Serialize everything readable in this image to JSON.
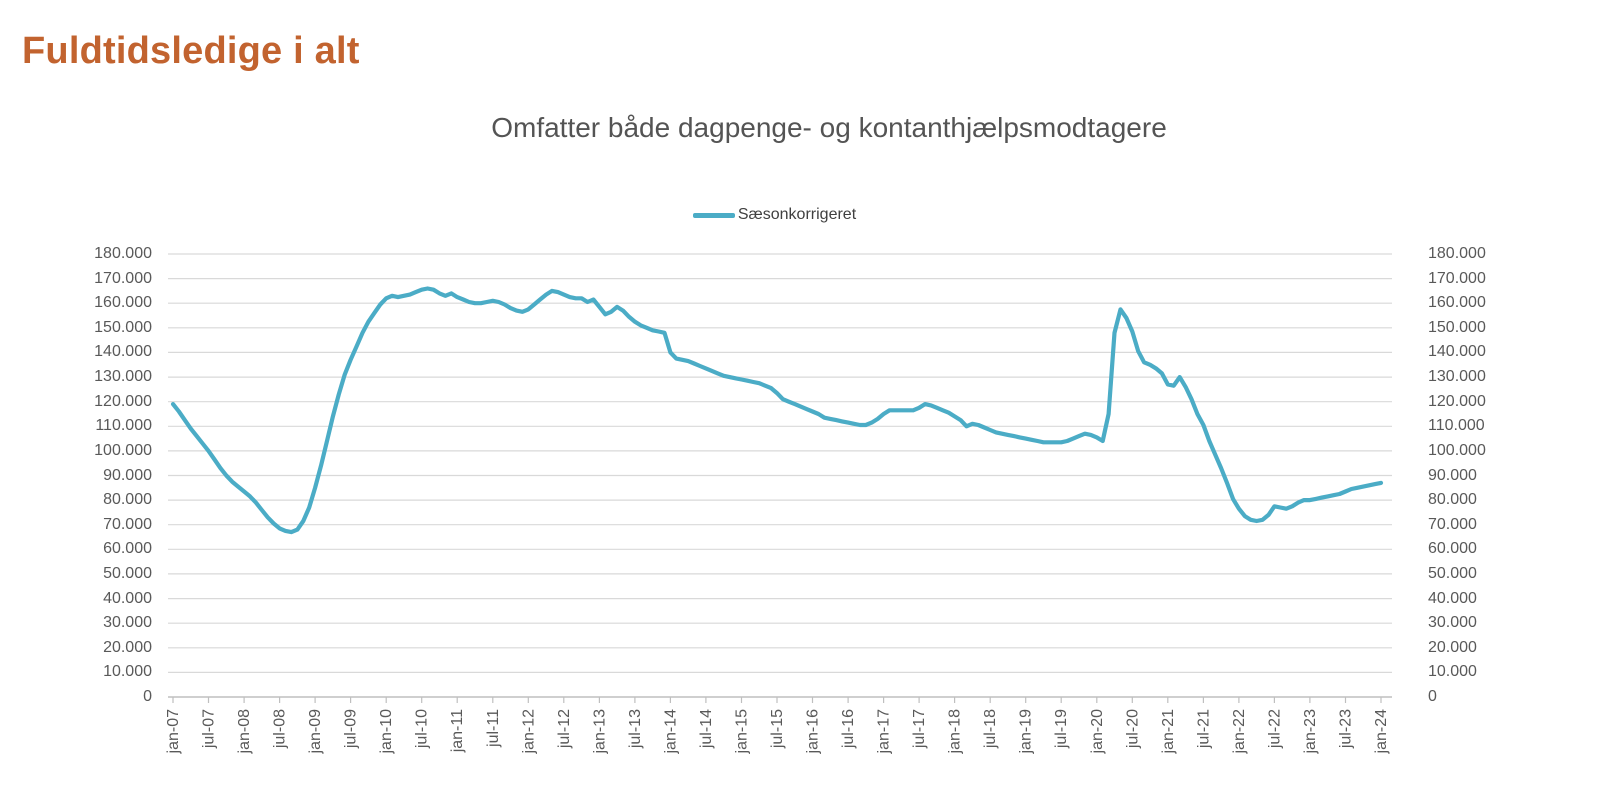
{
  "header": {
    "title": "Fuldtidsledige i alt",
    "title_color": "#C2632F"
  },
  "chart": {
    "subtitle": "Omfatter både dagpenge- og kontanthjælpsmodtagere",
    "subtitle_color": "#545454",
    "legend": {
      "label": "Sæsonkorrigeret",
      "label_color": "#404040",
      "marker_color": "#4BACC6",
      "position": "top-center"
    }
  },
  "chart_data": {
    "type": "line",
    "title": "Omfatter både dagpenge- og kontanthjælpsmodtagere",
    "series_name": "Sæsonkorrigeret",
    "frequency": "monthly",
    "x_start": "jan-07",
    "x_end": "jan-24",
    "line_color": "#4BACC6",
    "grid_color": "#D9D9D9",
    "axis_color": "#BFBFBF",
    "label_color": "#595959",
    "grid": true,
    "ylim": [
      0,
      180000
    ],
    "y_tick_step": 10000,
    "y_axis_on_both_sides": true,
    "y_tick_labels_desc": [
      "180.000",
      "170.000",
      "160.000",
      "150.000",
      "140.000",
      "130.000",
      "120.000",
      "110.000",
      "100.000",
      "90.000",
      "80.000",
      "70.000",
      "60.000",
      "50.000",
      "40.000",
      "30.000",
      "20.000",
      "10.000",
      "0"
    ],
    "x_tick_every_months": 6,
    "x_tick_labels": [
      "jan-07",
      "jul-07",
      "jan-08",
      "jul-08",
      "jan-09",
      "jul-09",
      "jan-10",
      "jul-10",
      "jan-11",
      "jul-11",
      "jan-12",
      "jul-12",
      "jan-13",
      "jul-13",
      "jan-14",
      "jul-14",
      "jan-15",
      "jul-15",
      "jan-16",
      "jul-16",
      "jan-17",
      "jul-17",
      "jan-18",
      "jul-18",
      "jan-19",
      "jul-19",
      "jan-20",
      "jul-20",
      "jan-21",
      "jul-21",
      "jan-22",
      "jul-22",
      "jan-23",
      "jul-23",
      "jan-24"
    ],
    "values": [
      119000,
      116000,
      112500,
      109000,
      106000,
      103000,
      100000,
      96500,
      93000,
      90000,
      87500,
      85500,
      83500,
      81500,
      79000,
      76000,
      73000,
      70500,
      68500,
      67500,
      67000,
      68000,
      71500,
      77000,
      85000,
      94000,
      104000,
      114000,
      123000,
      131000,
      137000,
      142500,
      148000,
      152500,
      156000,
      159500,
      162000,
      163000,
      162500,
      163000,
      163500,
      164500,
      165500,
      166000,
      165500,
      164000,
      163000,
      164000,
      162500,
      161500,
      160500,
      160000,
      160000,
      160500,
      161000,
      160500,
      159500,
      158000,
      157000,
      156500,
      157500,
      159500,
      161500,
      163500,
      165000,
      164500,
      163500,
      162500,
      162000,
      162000,
      160500,
      161500,
      158500,
      155500,
      156500,
      158500,
      157000,
      154500,
      152500,
      151000,
      150000,
      149000,
      148500,
      148000,
      140000,
      137500,
      137000,
      136500,
      135500,
      134500,
      133500,
      132500,
      131500,
      130500,
      130000,
      129500,
      129000,
      128500,
      128000,
      127500,
      126500,
      125500,
      123500,
      121000,
      120000,
      119000,
      118000,
      117000,
      116000,
      115000,
      113500,
      113000,
      112500,
      112000,
      111500,
      111000,
      110500,
      110500,
      111500,
      113000,
      115000,
      116500,
      116500,
      116500,
      116500,
      116500,
      117500,
      119000,
      118500,
      117500,
      116500,
      115500,
      114000,
      112500,
      110000,
      111000,
      110500,
      109500,
      108500,
      107500,
      107000,
      106500,
      106000,
      105500,
      105000,
      104500,
      104000,
      103500,
      103500,
      103500,
      103500,
      104000,
      105000,
      106000,
      107000,
      106500,
      105500,
      104000,
      115000,
      148000,
      157500,
      154000,
      148500,
      140500,
      136000,
      135000,
      133500,
      131500,
      127000,
      126500,
      130000,
      126000,
      121000,
      115000,
      110500,
      104000,
      98500,
      93000,
      87000,
      80500,
      76500,
      73500,
      72000,
      71500,
      72000,
      74000,
      77500,
      77000,
      76500,
      77500,
      79000,
      80000,
      80000,
      80500,
      81000,
      81500,
      82000,
      82500,
      83500,
      84500,
      85000,
      85500,
      86000,
      86500,
      87000
    ]
  }
}
